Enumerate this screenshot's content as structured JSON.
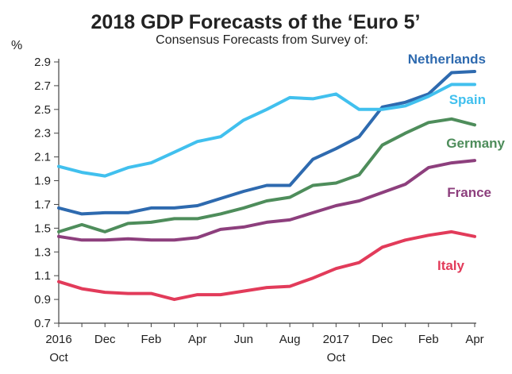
{
  "chart_data": {
    "type": "line",
    "title": "2018 GDP Forecasts of the ‘Euro 5’",
    "subtitle": "Consensus Forecasts from Survey of:",
    "ylabel": "%",
    "xlabel": "",
    "ylim": [
      0.7,
      2.9
    ],
    "yticks": [
      "0.7",
      "0.9",
      "1.1",
      "1.3",
      "1.5",
      "1.7",
      "1.9",
      "2.1",
      "2.3",
      "2.5",
      "2.7",
      "2.9"
    ],
    "x": [
      "2016 Oct",
      "Nov",
      "Dec",
      "Jan",
      "Feb",
      "Mar",
      "Apr",
      "May",
      "Jun",
      "Jul",
      "Aug",
      "Sep",
      "2017 Oct",
      "Nov",
      "Dec",
      "Jan",
      "Feb",
      "Mar",
      "Apr"
    ],
    "xtick_labels": [
      {
        "index": 0,
        "line1": "2016",
        "line2": "Oct"
      },
      {
        "index": 2,
        "line1": "Dec",
        "line2": ""
      },
      {
        "index": 4,
        "line1": "Feb",
        "line2": ""
      },
      {
        "index": 6,
        "line1": "Apr",
        "line2": ""
      },
      {
        "index": 8,
        "line1": "Jun",
        "line2": ""
      },
      {
        "index": 10,
        "line1": "Aug",
        "line2": ""
      },
      {
        "index": 12,
        "line1": "2017",
        "line2": "Oct"
      },
      {
        "index": 14,
        "line1": "Dec",
        "line2": ""
      },
      {
        "index": 16,
        "line1": "Feb",
        "line2": ""
      },
      {
        "index": 18,
        "line1": "Apr",
        "line2": ""
      }
    ],
    "grid": false,
    "series": [
      {
        "name": "Netherlands",
        "color": "#2e6aaf",
        "values": [
          1.67,
          1.62,
          1.63,
          1.63,
          1.67,
          1.67,
          1.69,
          1.75,
          1.81,
          1.86,
          1.86,
          2.08,
          2.17,
          2.27,
          2.52,
          2.56,
          2.63,
          2.81,
          2.82
        ]
      },
      {
        "name": "Spain",
        "color": "#41c0ee",
        "values": [
          2.02,
          1.97,
          1.94,
          2.01,
          2.05,
          2.14,
          2.23,
          2.27,
          2.41,
          2.5,
          2.6,
          2.59,
          2.63,
          2.5,
          2.5,
          2.53,
          2.61,
          2.71,
          2.71
        ]
      },
      {
        "name": "Germany",
        "color": "#4e8d5b",
        "values": [
          1.47,
          1.53,
          1.47,
          1.54,
          1.55,
          1.58,
          1.58,
          1.62,
          1.67,
          1.73,
          1.76,
          1.86,
          1.88,
          1.95,
          2.2,
          2.3,
          2.39,
          2.42,
          2.37
        ]
      },
      {
        "name": "France",
        "color": "#8d3f7d",
        "values": [
          1.43,
          1.4,
          1.4,
          1.41,
          1.4,
          1.4,
          1.42,
          1.49,
          1.51,
          1.55,
          1.57,
          1.63,
          1.69,
          1.73,
          1.8,
          1.87,
          2.01,
          2.05,
          2.07
        ]
      },
      {
        "name": "Italy",
        "color": "#e23b5a",
        "values": [
          1.05,
          0.99,
          0.96,
          0.95,
          0.95,
          0.9,
          0.94,
          0.94,
          0.97,
          1.0,
          1.01,
          1.08,
          1.16,
          1.21,
          1.34,
          1.4,
          1.44,
          1.47,
          1.43
        ]
      }
    ],
    "legend_placement": "inline-right"
  }
}
